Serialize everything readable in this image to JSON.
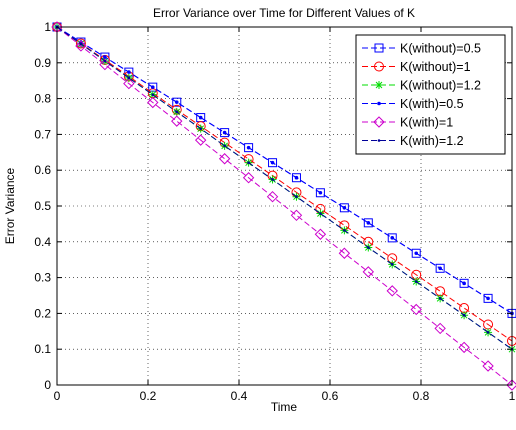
{
  "chart_data": {
    "type": "line",
    "title": "Error Variance over Time for Different Values of K",
    "xlabel": "Time",
    "ylabel": "Error Variance",
    "xlim": [
      0,
      1
    ],
    "ylim": [
      0,
      1
    ],
    "xticks": [
      0,
      0.2,
      0.4,
      0.6,
      0.8,
      1
    ],
    "xtick_labels": [
      "0",
      "0.2",
      "0.4",
      "0.6",
      "0.8",
      "1"
    ],
    "yticks": [
      0,
      0.1,
      0.2,
      0.3,
      0.4,
      0.5,
      0.6,
      0.7,
      0.8,
      0.9,
      1
    ],
    "ytick_labels": [
      "0",
      "0.1",
      "0.2",
      "0.3",
      "0.4",
      "0.5",
      "0.6",
      "0.7",
      "0.8",
      "0.9",
      "1"
    ],
    "grid": true,
    "legend_position": "top-right",
    "x": [
      0,
      0.0526,
      0.1053,
      0.1579,
      0.2105,
      0.2632,
      0.3158,
      0.3684,
      0.4211,
      0.4737,
      0.5263,
      0.5789,
      0.6316,
      0.6842,
      0.7368,
      0.7895,
      0.8421,
      0.8947,
      0.9474,
      1
    ],
    "series": [
      {
        "name": "K(without)=0.5",
        "color": "#0000ff",
        "marker": "square",
        "values": [
          1,
          0.958,
          0.916,
          0.874,
          0.832,
          0.79,
          0.747,
          0.705,
          0.663,
          0.621,
          0.579,
          0.537,
          0.495,
          0.453,
          0.411,
          0.368,
          0.326,
          0.284,
          0.242,
          0.2
        ]
      },
      {
        "name": "K(without)=1",
        "color": "#ff0000",
        "marker": "circle",
        "values": [
          1,
          0.954,
          0.908,
          0.862,
          0.815,
          0.769,
          0.723,
          0.677,
          0.631,
          0.585,
          0.538,
          0.492,
          0.446,
          0.4,
          0.354,
          0.308,
          0.262,
          0.215,
          0.169,
          0.123
        ]
      },
      {
        "name": "K(without)=1.2",
        "color": "#00dd00",
        "marker": "asterisk",
        "values": [
          1,
          0.953,
          0.905,
          0.858,
          0.811,
          0.763,
          0.716,
          0.668,
          0.621,
          0.574,
          0.526,
          0.479,
          0.432,
          0.384,
          0.337,
          0.289,
          0.242,
          0.195,
          0.147,
          0.1
        ]
      },
      {
        "name": "K(with)=0.5",
        "color": "#0000ff",
        "marker": "dot",
        "values": [
          1,
          0.958,
          0.916,
          0.874,
          0.832,
          0.79,
          0.747,
          0.705,
          0.663,
          0.621,
          0.579,
          0.537,
          0.495,
          0.453,
          0.411,
          0.368,
          0.326,
          0.284,
          0.242,
          0.2
        ]
      },
      {
        "name": "K(with)=1",
        "color": "#cc00cc",
        "marker": "diamond",
        "values": [
          1,
          0.947,
          0.895,
          0.842,
          0.789,
          0.737,
          0.684,
          0.632,
          0.579,
          0.526,
          0.474,
          0.421,
          0.368,
          0.316,
          0.263,
          0.211,
          0.158,
          0.105,
          0.053,
          0
        ]
      },
      {
        "name": "K(with)=1.2",
        "color": "#000099",
        "marker": "point",
        "values": [
          1,
          0.953,
          0.905,
          0.858,
          0.811,
          0.763,
          0.716,
          0.668,
          0.621,
          0.574,
          0.526,
          0.479,
          0.432,
          0.384,
          0.337,
          0.289,
          0.242,
          0.195,
          0.147,
          0.1
        ]
      }
    ]
  }
}
